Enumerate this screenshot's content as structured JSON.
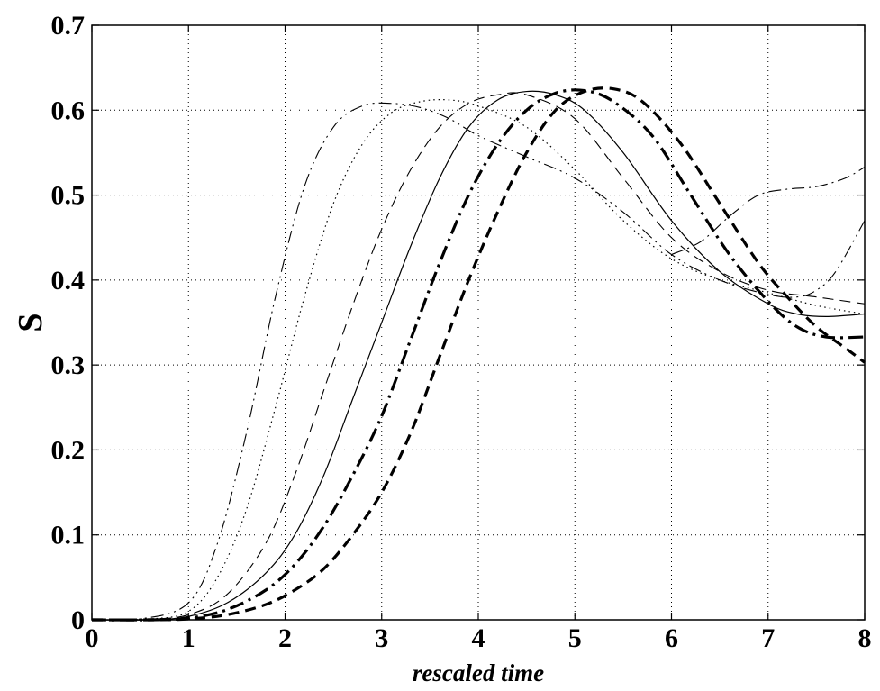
{
  "chart_data": {
    "type": "line",
    "title": "",
    "xlabel": "rescaled time",
    "ylabel": "S",
    "xlim": [
      0,
      8
    ],
    "ylim": [
      0,
      0.7
    ],
    "xticks": [
      "0",
      "1",
      "2",
      "3",
      "4",
      "5",
      "6",
      "7",
      "8"
    ],
    "yticks": [
      "0",
      "0.1",
      "0.2",
      "0.3",
      "0.4",
      "0.5",
      "0.6",
      "0.7"
    ],
    "grid": true,
    "legend": "none",
    "series": [
      {
        "style": "dash-dot-dot-thin",
        "points": [
          [
            0,
            0
          ],
          [
            0.5,
            0.001
          ],
          [
            1,
            0.02
          ],
          [
            1.3,
            0.09
          ],
          [
            1.6,
            0.22
          ],
          [
            1.9,
            0.38
          ],
          [
            2.2,
            0.51
          ],
          [
            2.5,
            0.58
          ],
          [
            2.8,
            0.605
          ],
          [
            3.1,
            0.608
          ],
          [
            3.4,
            0.603
          ],
          [
            3.7,
            0.59
          ],
          [
            4,
            0.57
          ],
          [
            4.5,
            0.545
          ],
          [
            5,
            0.52
          ],
          [
            5.5,
            0.48
          ],
          [
            6,
            0.43
          ],
          [
            6.5,
            0.4
          ],
          [
            7,
            0.383
          ],
          [
            7.3,
            0.38
          ],
          [
            7.5,
            0.388
          ],
          [
            7.7,
            0.41
          ],
          [
            8,
            0.47
          ]
        ]
      },
      {
        "style": "dotted-thin",
        "points": [
          [
            0,
            0
          ],
          [
            0.6,
            0.001
          ],
          [
            1,
            0.01
          ],
          [
            1.3,
            0.05
          ],
          [
            1.6,
            0.13
          ],
          [
            1.9,
            0.25
          ],
          [
            2.2,
            0.38
          ],
          [
            2.5,
            0.49
          ],
          [
            2.8,
            0.56
          ],
          [
            3.1,
            0.597
          ],
          [
            3.4,
            0.61
          ],
          [
            3.7,
            0.612
          ],
          [
            4,
            0.605
          ],
          [
            4.5,
            0.58
          ],
          [
            5,
            0.53
          ],
          [
            5.5,
            0.47
          ],
          [
            6,
            0.425
          ],
          [
            6.5,
            0.4
          ],
          [
            7,
            0.385
          ],
          [
            7.5,
            0.37
          ],
          [
            8,
            0.36
          ]
        ]
      },
      {
        "style": "dashed-thin",
        "points": [
          [
            0,
            0
          ],
          [
            0.6,
            0.001
          ],
          [
            1,
            0.006
          ],
          [
            1.4,
            0.03
          ],
          [
            1.8,
            0.09
          ],
          [
            2.1,
            0.17
          ],
          [
            2.4,
            0.27
          ],
          [
            2.7,
            0.37
          ],
          [
            3,
            0.46
          ],
          [
            3.3,
            0.53
          ],
          [
            3.6,
            0.58
          ],
          [
            3.9,
            0.608
          ],
          [
            4.2,
            0.618
          ],
          [
            4.5,
            0.618
          ],
          [
            5,
            0.59
          ],
          [
            5.5,
            0.52
          ],
          [
            6,
            0.45
          ],
          [
            6.5,
            0.41
          ],
          [
            7,
            0.388
          ],
          [
            7.5,
            0.38
          ],
          [
            8,
            0.372
          ]
        ]
      },
      {
        "style": "solid-thin",
        "points": [
          [
            0,
            0
          ],
          [
            0.6,
            0
          ],
          [
            1,
            0.004
          ],
          [
            1.4,
            0.02
          ],
          [
            1.8,
            0.055
          ],
          [
            2.1,
            0.1
          ],
          [
            2.4,
            0.17
          ],
          [
            2.7,
            0.26
          ],
          [
            3,
            0.35
          ],
          [
            3.3,
            0.44
          ],
          [
            3.6,
            0.52
          ],
          [
            3.9,
            0.58
          ],
          [
            4.2,
            0.612
          ],
          [
            4.5,
            0.622
          ],
          [
            4.8,
            0.618
          ],
          [
            5.1,
            0.6
          ],
          [
            5.5,
            0.55
          ],
          [
            6,
            0.47
          ],
          [
            6.5,
            0.41
          ],
          [
            7,
            0.372
          ],
          [
            7.3,
            0.36
          ],
          [
            7.6,
            0.357
          ],
          [
            8,
            0.36
          ]
        ]
      },
      {
        "style": "dash-dot-thick",
        "points": [
          [
            0,
            0
          ],
          [
            0.6,
            0
          ],
          [
            1,
            0.002
          ],
          [
            1.4,
            0.012
          ],
          [
            1.8,
            0.035
          ],
          [
            2.1,
            0.065
          ],
          [
            2.4,
            0.11
          ],
          [
            2.7,
            0.17
          ],
          [
            3,
            0.24
          ],
          [
            3.3,
            0.33
          ],
          [
            3.6,
            0.42
          ],
          [
            3.9,
            0.5
          ],
          [
            4.2,
            0.56
          ],
          [
            4.5,
            0.6
          ],
          [
            4.8,
            0.62
          ],
          [
            5.1,
            0.623
          ],
          [
            5.4,
            0.61
          ],
          [
            5.8,
            0.57
          ],
          [
            6.2,
            0.5
          ],
          [
            6.6,
            0.43
          ],
          [
            7,
            0.375
          ],
          [
            7.3,
            0.345
          ],
          [
            7.6,
            0.333
          ],
          [
            8,
            0.333
          ]
        ]
      },
      {
        "style": "dashed-thick",
        "points": [
          [
            0,
            0
          ],
          [
            0.6,
            0
          ],
          [
            1,
            0.001
          ],
          [
            1.4,
            0.006
          ],
          [
            1.8,
            0.018
          ],
          [
            2.1,
            0.035
          ],
          [
            2.4,
            0.06
          ],
          [
            2.7,
            0.1
          ],
          [
            3,
            0.15
          ],
          [
            3.3,
            0.22
          ],
          [
            3.6,
            0.31
          ],
          [
            3.9,
            0.4
          ],
          [
            4.2,
            0.48
          ],
          [
            4.5,
            0.55
          ],
          [
            4.8,
            0.6
          ],
          [
            5.1,
            0.622
          ],
          [
            5.4,
            0.625
          ],
          [
            5.7,
            0.61
          ],
          [
            6.1,
            0.56
          ],
          [
            6.5,
            0.49
          ],
          [
            6.9,
            0.42
          ],
          [
            7.2,
            0.38
          ],
          [
            7.5,
            0.345
          ],
          [
            7.8,
            0.32
          ],
          [
            8,
            0.303
          ]
        ]
      },
      {
        "style": "dash-dot-thin-late",
        "points": [
          [
            6,
            0.43
          ],
          [
            6.3,
            0.445
          ],
          [
            6.6,
            0.475
          ],
          [
            6.9,
            0.5
          ],
          [
            7.2,
            0.507
          ],
          [
            7.5,
            0.51
          ],
          [
            7.8,
            0.52
          ],
          [
            8,
            0.533
          ]
        ]
      }
    ]
  }
}
